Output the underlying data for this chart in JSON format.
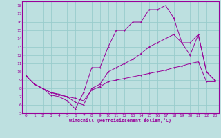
{
  "xlabel": "Windchill (Refroidissement éolien,°C)",
  "bg_color": "#bde0e0",
  "line_color": "#990099",
  "grid_color": "#99cccc",
  "xlim": [
    -0.5,
    23.5
  ],
  "ylim": [
    5,
    18.5
  ],
  "xticks": [
    0,
    1,
    2,
    3,
    4,
    5,
    6,
    7,
    8,
    9,
    10,
    11,
    12,
    13,
    14,
    15,
    16,
    17,
    18,
    19,
    20,
    21,
    22,
    23
  ],
  "yticks": [
    5,
    6,
    7,
    8,
    9,
    10,
    11,
    12,
    13,
    14,
    15,
    16,
    17,
    18
  ],
  "line1_x": [
    0,
    1,
    2,
    3,
    4,
    5,
    6,
    7,
    8,
    9,
    10,
    11,
    12,
    13,
    14,
    15,
    16,
    17,
    18,
    19,
    20,
    21,
    22,
    23
  ],
  "line1_y": [
    9.5,
    8.5,
    8.0,
    7.2,
    7.0,
    6.5,
    5.5,
    7.5,
    10.5,
    10.5,
    13.0,
    15.0,
    15.0,
    16.0,
    16.0,
    17.5,
    17.5,
    18.0,
    16.5,
    13.5,
    12.0,
    14.5,
    10.0,
    9.0
  ],
  "line2_x": [
    0,
    1,
    2,
    3,
    4,
    5,
    6,
    7,
    8,
    9,
    10,
    11,
    12,
    13,
    14,
    15,
    16,
    17,
    18,
    19,
    20,
    21,
    22,
    23
  ],
  "line2_y": [
    9.5,
    8.5,
    8.0,
    7.5,
    7.3,
    7.0,
    6.3,
    6.0,
    8.0,
    8.5,
    10.0,
    10.5,
    11.0,
    11.5,
    12.2,
    13.0,
    13.5,
    14.0,
    14.5,
    13.5,
    13.5,
    14.5,
    10.0,
    9.0
  ],
  "line3_x": [
    0,
    1,
    2,
    3,
    4,
    5,
    6,
    7,
    8,
    9,
    10,
    11,
    12,
    13,
    14,
    15,
    16,
    17,
    18,
    19,
    20,
    21,
    22,
    23
  ],
  "line3_y": [
    9.5,
    8.5,
    8.0,
    7.5,
    7.2,
    7.0,
    6.8,
    6.5,
    7.8,
    8.2,
    8.8,
    9.0,
    9.2,
    9.4,
    9.6,
    9.8,
    10.0,
    10.2,
    10.5,
    10.7,
    11.0,
    11.2,
    8.8,
    8.8
  ]
}
